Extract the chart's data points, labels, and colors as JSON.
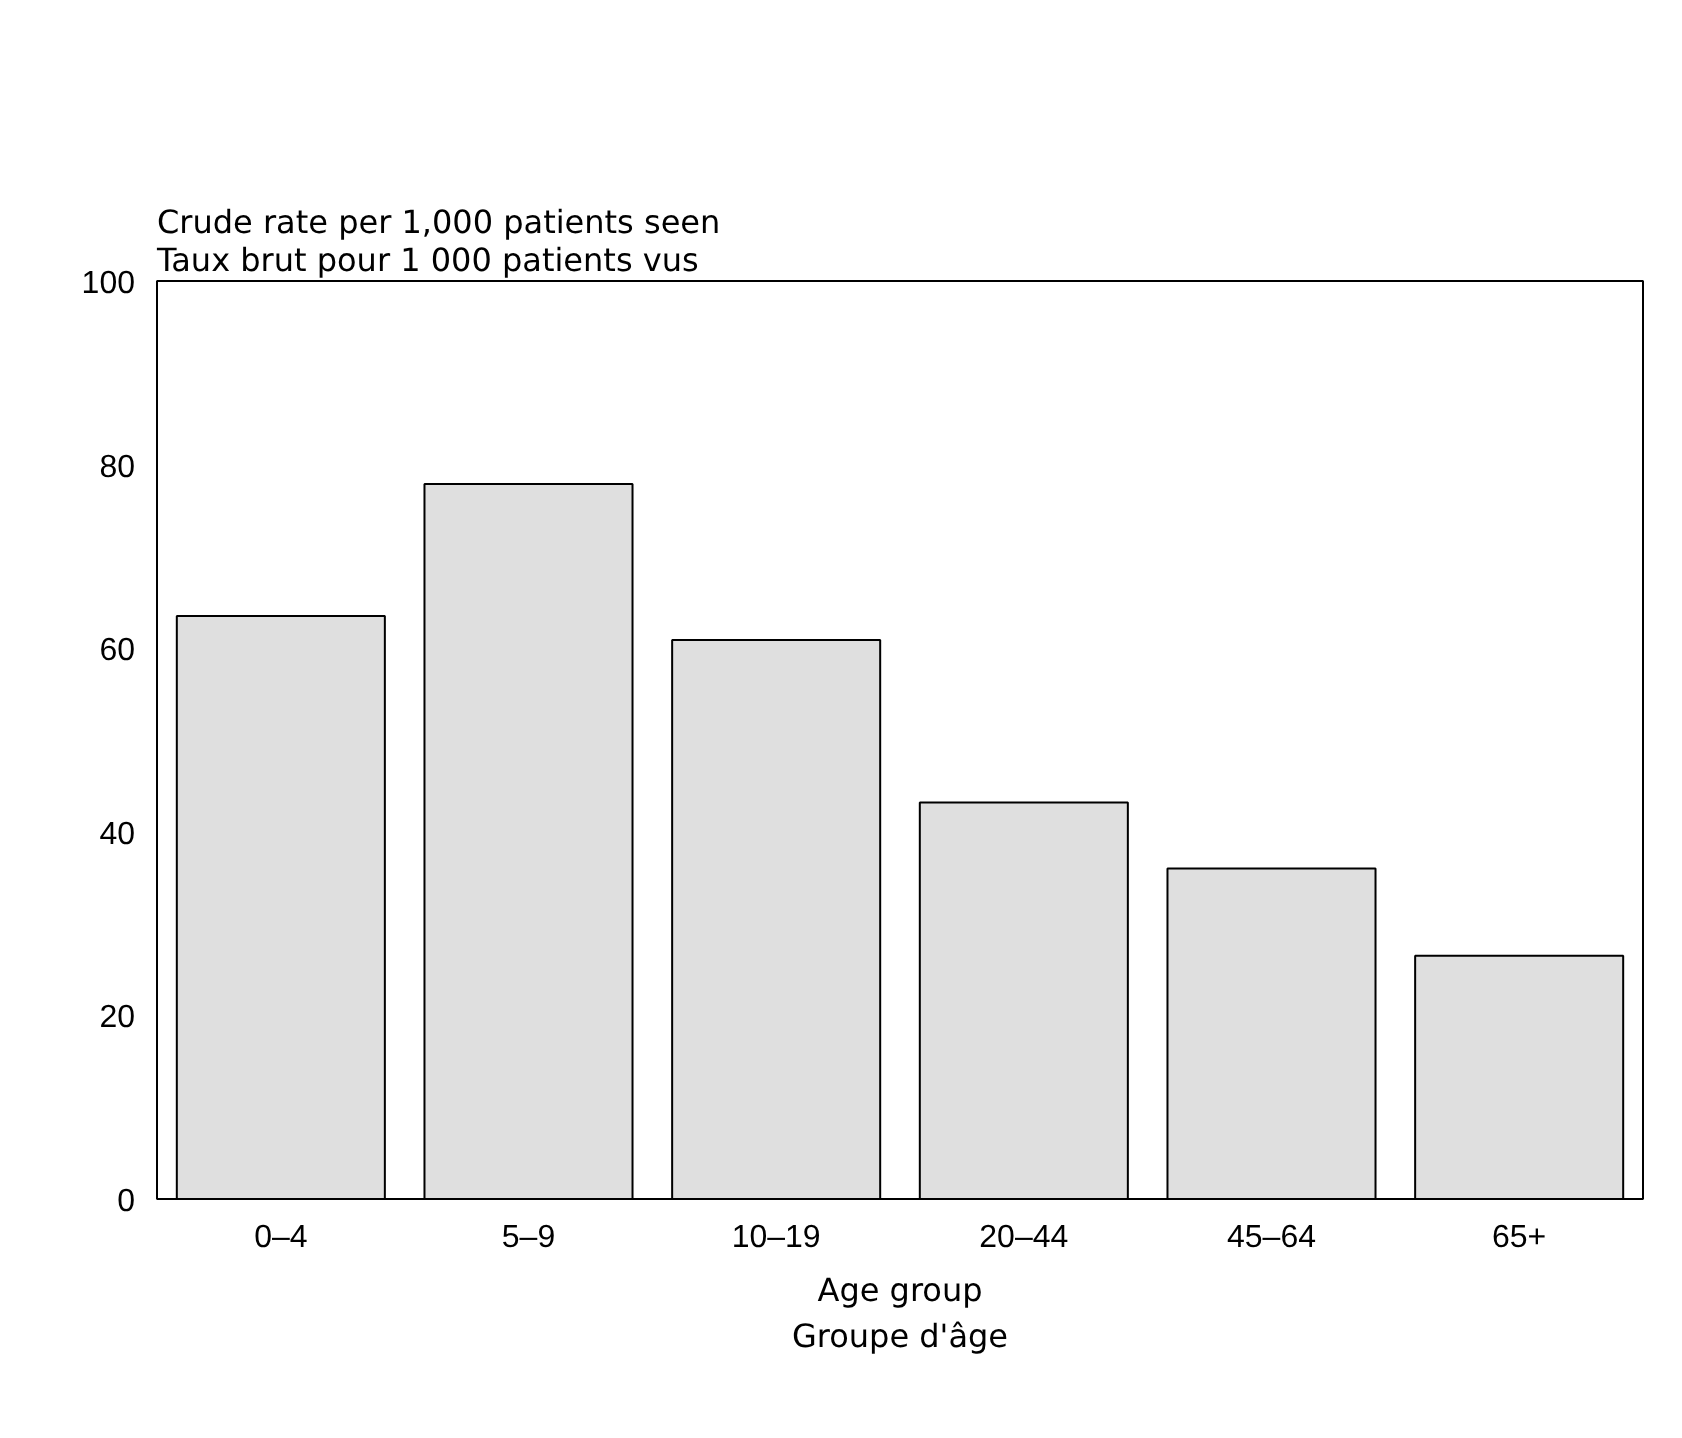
{
  "chart_data": {
    "type": "bar",
    "categories": [
      "0–4",
      "5–9",
      "10–19",
      "20–44",
      "45–64",
      "65+"
    ],
    "values": [
      63.5,
      77.9,
      60.9,
      43.2,
      36.0,
      26.5
    ],
    "color": "#dfdfdf",
    "ylabel": "Crude rate per 1,000 patients seen\nTaux brut pour 1 000 patients vus",
    "xlabel": "Age group\nGroupe d'âge",
    "ylim": [
      0,
      100
    ],
    "yticks": [
      0,
      20,
      40,
      60,
      80,
      100
    ],
    "grid": false
  }
}
